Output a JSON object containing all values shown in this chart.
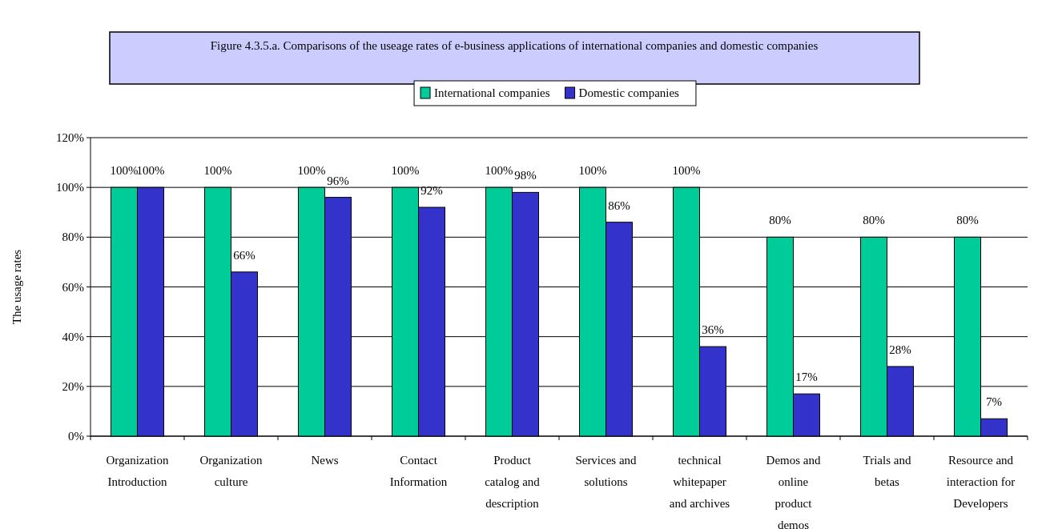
{
  "chart_data": {
    "type": "bar",
    "title": "Figure 4.3.5.a.  Comparisons of the useage rates of e-business applications of international companies and domestic companies",
    "ylabel": "The usage rates",
    "categories": [
      "Organization Introduction",
      "Organization culture",
      "News",
      "Contact Information",
      "Product catalog and description",
      "Services and solutions",
      "technical whitepaper and archives",
      "Demos and online product demos",
      "Trials and betas",
      "Resource and interaction for Developers"
    ],
    "series": [
      {
        "name": "International companies",
        "color": "#00cc99",
        "values": [
          100,
          100,
          100,
          100,
          100,
          100,
          100,
          80,
          80,
          80
        ],
        "value_labels": [
          "100%",
          "100%",
          "100%",
          "100%",
          "100%",
          "100%",
          "100%",
          "80%",
          "80%",
          "80%"
        ]
      },
      {
        "name": "Domestic companies",
        "color": "#3333cc",
        "values": [
          100,
          66,
          96,
          92,
          98,
          86,
          36,
          17,
          28,
          7
        ],
        "value_labels": [
          "100%",
          "66%",
          "96%",
          "92%",
          "98%",
          "86%",
          "36%",
          "17%",
          "28%",
          "7%"
        ]
      }
    ],
    "ylim": [
      0,
      120
    ],
    "yticks": [
      {
        "value": 0,
        "label": "0%"
      },
      {
        "value": 20,
        "label": "20%"
      },
      {
        "value": 40,
        "label": "40%"
      },
      {
        "value": 60,
        "label": "60%"
      },
      {
        "value": 80,
        "label": "80%"
      },
      {
        "value": 100,
        "label": "100%"
      },
      {
        "value": 120,
        "label": "120%"
      }
    ],
    "grid": "y",
    "legend": "top"
  }
}
